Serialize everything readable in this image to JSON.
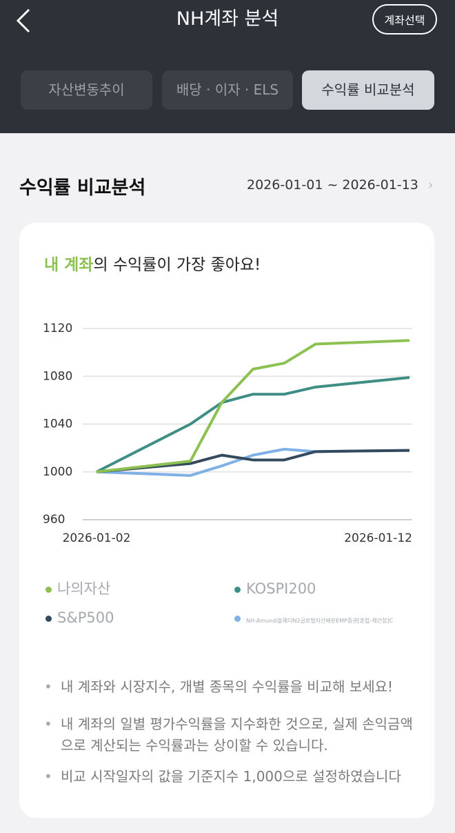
{
  "header": {
    "title": "NH계좌 분석",
    "button": "계좌선택"
  },
  "tabs": {
    "items": [
      "자산변동추이",
      "배당 · 이자 · ELS",
      "수익률 비교분석"
    ],
    "active": 2
  },
  "section": {
    "title": "수익률 비교분석",
    "date_range": "2026-01-01 ~ 2026-01-13"
  },
  "card": {
    "headline_highlight": "내 계좌",
    "headline_rest": "의 수익률이 가장 좋아요!"
  },
  "chart_data": {
    "type": "line",
    "x": [
      "2026-01-02",
      "2026-01-05",
      "2026-01-06",
      "2026-01-07",
      "2026-01-08",
      "2026-01-09",
      "2026-01-12"
    ],
    "xlim": [
      "2026-01-02",
      "2026-01-12"
    ],
    "xticks": [
      "2026-01-02",
      "2026-01-12"
    ],
    "ylim": [
      960,
      1120
    ],
    "yticks": [
      960,
      1000,
      1040,
      1080,
      1120
    ],
    "grid": true,
    "series": [
      {
        "name": "나의자산",
        "color": "#8cc152",
        "values": [
          1000,
          1009,
          1058,
          1086,
          1091,
          1107,
          1110
        ]
      },
      {
        "name": "KOSPI200",
        "color": "#3e8e85",
        "values": [
          1000,
          1040,
          1058,
          1065,
          1065,
          1071,
          1079
        ]
      },
      {
        "name": "S&P500",
        "color": "#34495e",
        "values": [
          1000,
          1007,
          1014,
          1010,
          1010,
          1017,
          1018
        ]
      },
      {
        "name": "NH-Amundi올웨더N2글로벌자산배분EMP증권[혼합-재간접]C",
        "color": "#7fb0e6",
        "values": [
          1000,
          997,
          1005,
          1014,
          1019,
          1017,
          1018
        ]
      }
    ]
  },
  "notes": [
    "내 계좌와 시장지수, 개별 종목의 수익률을 비교해 보세요!",
    "내 계좌의 일별 평가수익률을 지수화한 것으로, 실제 손익금액으로 계산되는 수익률과는 상이할 수 있습니다.",
    "비교 시작일자의 값을 기준지수 1,000으로 설정하였습니다"
  ]
}
